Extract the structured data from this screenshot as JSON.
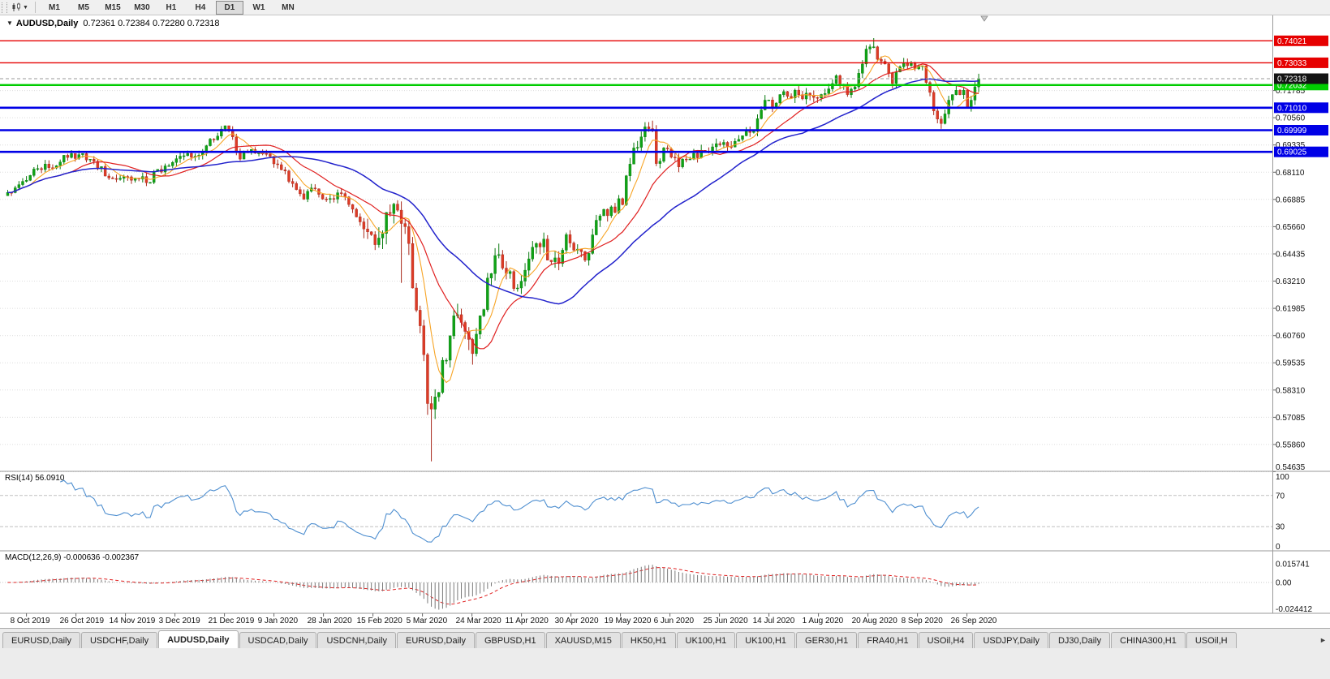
{
  "toolbar": {
    "timeframes": [
      "M1",
      "M5",
      "M15",
      "M30",
      "H1",
      "H4",
      "D1",
      "W1",
      "MN"
    ],
    "active_timeframe": "D1"
  },
  "chart": {
    "symbol": "AUDUSD",
    "period": "Daily",
    "title_symbol": "AUDUSD,Daily",
    "title_ohlc": "0.72361 0.72384 0.72280 0.72318",
    "quote": {
      "open": "0.72361",
      "high": "0.72384",
      "low": "0.72280",
      "close": "0.72318"
    },
    "price_ticks": [
      0.71785,
      0.7056,
      0.69335,
      0.6811,
      0.66885,
      0.6566,
      0.64435,
      0.6321,
      0.61985,
      0.6076,
      0.59535,
      0.5831,
      0.57085,
      0.5586,
      0.54635
    ],
    "levels": [
      {
        "value": 0.74021,
        "label": "0.74021",
        "color": "#E60000",
        "width": 1.4
      },
      {
        "value": 0.73033,
        "label": "0.73033",
        "color": "#E60000",
        "width": 1.4
      },
      {
        "value": 0.72032,
        "label": "0.72032",
        "color": "#00CC00",
        "width": 2.4
      },
      {
        "value": 0.7101,
        "label": "0.71010",
        "color": "#0000E6",
        "width": 2.6
      },
      {
        "value": 0.69999,
        "label": "0.69999",
        "color": "#0000E6",
        "width": 2.6
      },
      {
        "value": 0.69025,
        "label": "0.69025",
        "color": "#0000E6",
        "width": 2.6
      }
    ],
    "current_price": {
      "value": 0.72318,
      "label": "0.72318",
      "box": "#141414"
    },
    "date_labels": [
      "8 Oct 2019",
      "26 Oct 2019",
      "14 Nov 2019",
      "3 Dec 2019",
      "21 Dec 2019",
      "9 Jan 2020",
      "28 Jan 2020",
      "15 Feb 2020",
      "5 Mar 2020",
      "24 Mar 2020",
      "11 Apr 2020",
      "30 Apr 2020",
      "19 May 2020",
      "6 Jun 2020",
      "25 Jun 2020",
      "14 Jul 2020",
      "1 Aug 2020",
      "20 Aug 2020",
      "8 Sep 2020",
      "26 Sep 2020"
    ],
    "series": {
      "type": "candlestick",
      "count": 260,
      "anchors": [
        [
          0,
          0.672
        ],
        [
          3,
          0.6755
        ],
        [
          7,
          0.6825
        ],
        [
          12,
          0.683
        ],
        [
          17,
          0.6895
        ],
        [
          19,
          0.689
        ],
        [
          23,
          0.686
        ],
        [
          27,
          0.6785
        ],
        [
          32,
          0.679
        ],
        [
          38,
          0.6765
        ],
        [
          39,
          0.6815
        ],
        [
          43,
          0.684
        ],
        [
          47,
          0.6885
        ],
        [
          52,
          0.69
        ],
        [
          57,
          0.7005
        ],
        [
          58,
          0.702
        ],
        [
          59,
          0.7
        ],
        [
          62,
          0.687
        ],
        [
          64,
          0.69
        ],
        [
          68,
          0.6895
        ],
        [
          72,
          0.6845
        ],
        [
          76,
          0.676
        ],
        [
          79,
          0.669
        ],
        [
          81,
          0.674
        ],
        [
          85,
          0.669
        ],
        [
          89,
          0.6715
        ],
        [
          93,
          0.661
        ],
        [
          97,
          0.653
        ],
        [
          99,
          0.6515
        ],
        [
          100,
          0.6535
        ],
        [
          102,
          0.6625
        ],
        [
          104,
          0.664
        ],
        [
          105,
          0.658
        ],
        [
          107,
          0.649
        ],
        [
          108,
          0.629
        ],
        [
          109,
          0.619
        ],
        [
          110,
          0.612
        ],
        [
          111,
          0.599
        ],
        [
          112,
          0.577
        ],
        [
          113,
          0.5745
        ],
        [
          114,
          0.58
        ],
        [
          115,
          0.582
        ],
        [
          116,
          0.5965
        ],
        [
          117,
          0.5965
        ],
        [
          118,
          0.6075
        ],
        [
          119,
          0.6165
        ],
        [
          120,
          0.617
        ],
        [
          121,
          0.6135
        ],
        [
          122,
          0.6095
        ],
        [
          124,
          0.5995
        ],
        [
          126,
          0.6165
        ],
        [
          128,
          0.6335
        ],
        [
          131,
          0.644
        ],
        [
          133,
          0.6355
        ],
        [
          136,
          0.629
        ],
        [
          138,
          0.637
        ],
        [
          141,
          0.649
        ],
        [
          143,
          0.651
        ],
        [
          144,
          0.6415
        ],
        [
          147,
          0.64
        ],
        [
          149,
          0.653
        ],
        [
          152,
          0.6465
        ],
        [
          154,
          0.6415
        ],
        [
          157,
          0.6595
        ],
        [
          161,
          0.6655
        ],
        [
          164,
          0.6665
        ],
        [
          165,
          0.6795
        ],
        [
          167,
          0.692
        ],
        [
          169,
          0.697
        ],
        [
          170,
          0.7015
        ],
        [
          172,
          0.7
        ],
        [
          173,
          0.685
        ],
        [
          175,
          0.692
        ],
        [
          179,
          0.6835
        ],
        [
          182,
          0.687
        ],
        [
          186,
          0.6905
        ],
        [
          188,
          0.6925
        ],
        [
          191,
          0.6945
        ],
        [
          194,
          0.695
        ],
        [
          196,
          0.6975
        ],
        [
          199,
          0.6995
        ],
        [
          202,
          0.7135
        ],
        [
          204,
          0.7105
        ],
        [
          206,
          0.716
        ],
        [
          209,
          0.7145
        ],
        [
          211,
          0.716
        ],
        [
          214,
          0.7155
        ],
        [
          216,
          0.7145
        ],
        [
          218,
          0.7165
        ],
        [
          221,
          0.7245
        ],
        [
          224,
          0.716
        ],
        [
          226,
          0.7195
        ],
        [
          229,
          0.7365
        ],
        [
          230,
          0.7375
        ],
        [
          231,
          0.7375
        ],
        [
          233,
          0.731
        ],
        [
          236,
          0.721
        ],
        [
          238,
          0.7285
        ],
        [
          241,
          0.73
        ],
        [
          244,
          0.729
        ],
        [
          246,
          0.717
        ],
        [
          248,
          0.705
        ],
        [
          249,
          0.703
        ],
        [
          251,
          0.7135
        ],
        [
          252,
          0.716
        ],
        [
          253,
          0.718
        ],
        [
          254,
          0.716
        ],
        [
          255,
          0.718
        ],
        [
          256,
          0.7105
        ],
        [
          257,
          0.7135
        ],
        [
          258,
          0.7195
        ],
        [
          259,
          0.72318
        ]
      ],
      "wick_overrides": {
        "105": {
          "low": 0.6313
        },
        "113": {
          "low": 0.551
        },
        "172": {
          "high": 0.7043
        },
        "231": {
          "high": 0.7414
        },
        "249": {
          "low": 0.7006
        }
      },
      "volatility_zones": [
        {
          "to": 95,
          "f": 0.75
        },
        {
          "to": 132,
          "f": 2.0
        },
        {
          "to": 170,
          "f": 1.25
        },
        {
          "to": 300,
          "f": 0.95
        }
      ]
    },
    "moving_averages": [
      {
        "name": "fast",
        "period": 7,
        "color": "#F7A425",
        "width": 1.1
      },
      {
        "name": "medium",
        "period": 18,
        "color": "#E02020",
        "width": 1.2
      },
      {
        "name": "slow",
        "period": 40,
        "color": "#2222CC",
        "width": 1.5
      }
    ],
    "colors": {
      "up": "#0FA315",
      "up_dark": "#0A7A10",
      "down": "#DD3B26",
      "down_dark": "#A8281A",
      "grid": "#DCDCDC"
    }
  },
  "rsi": {
    "label": "RSI(14) 56.0910",
    "name": "RSI",
    "period": 14,
    "value": "56.0910",
    "levels": [
      100,
      70,
      30,
      0
    ],
    "color": "#4F8FD0"
  },
  "macd": {
    "label": "MACD(12,26,9) -0.000636 -0.002367",
    "params": [
      12,
      26,
      9
    ],
    "main_value": "-0.000636",
    "signal_value": "-0.002367",
    "axis_labels": [
      "0.015741",
      "0.00",
      "-0.024412"
    ],
    "axis_max": 0.015741,
    "axis_min": -0.024412,
    "histogram_color": "#7A7A7A",
    "signal_color": "#E02020"
  },
  "tabs": {
    "items": [
      "EURUSD,Daily",
      "USDCHF,Daily",
      "AUDUSD,Daily",
      "USDCAD,Daily",
      "USDCNH,Daily",
      "EURUSD,Daily",
      "GBPUSD,H1",
      "XAUUSD,M15",
      "HK50,H1",
      "UK100,H1",
      "UK100,H1",
      "GER30,H1",
      "FRA40,H1",
      "USOil,H4",
      "USDJPY,Daily",
      "DJ30,Daily",
      "CHINA300,H1",
      "USOil,H"
    ],
    "active_index": 2,
    "scroll_right_icon": "►"
  }
}
